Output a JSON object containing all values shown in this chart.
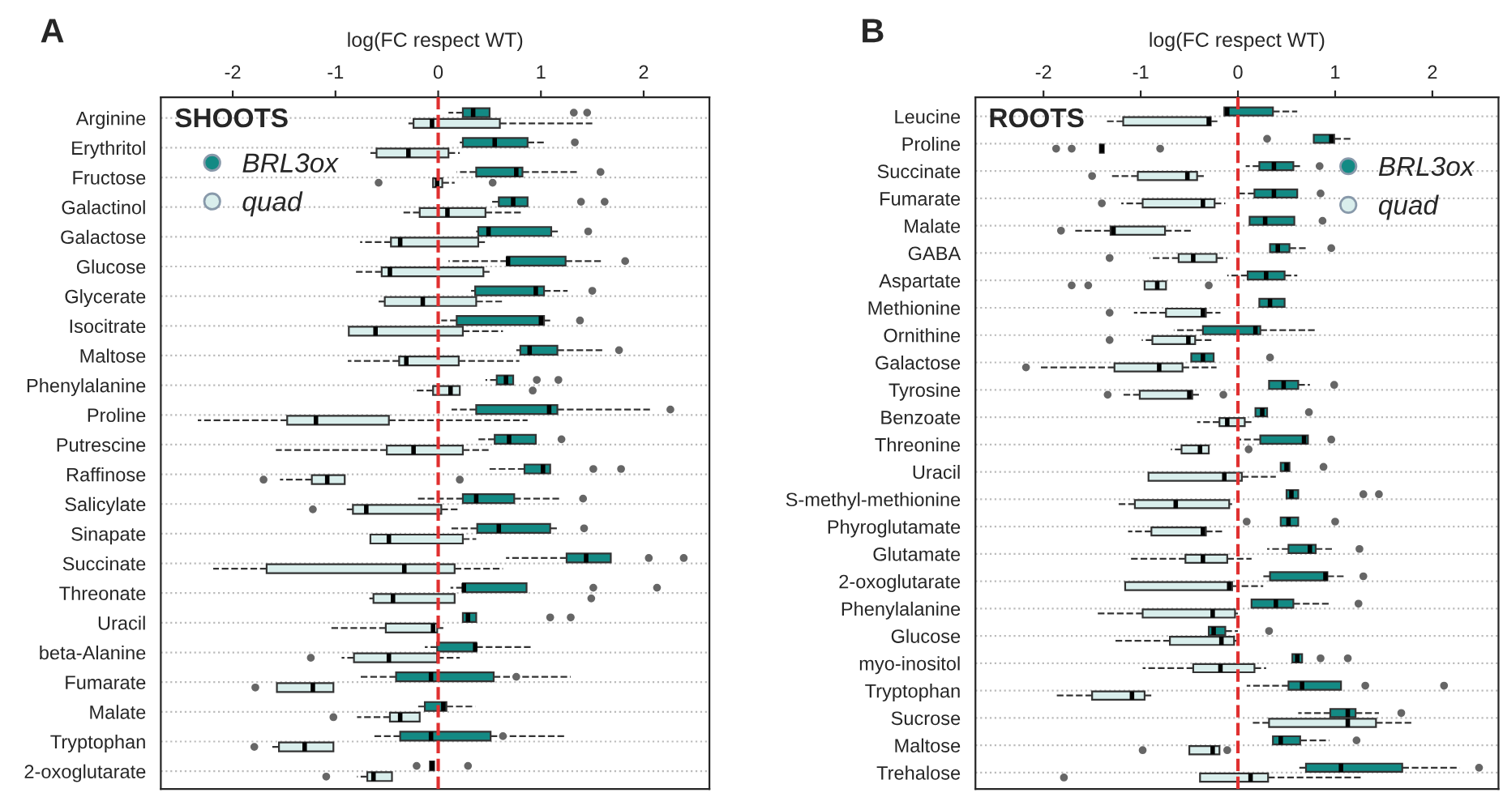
{
  "chart_data": [
    {
      "type": "box",
      "orientation": "horizontal",
      "title": "A",
      "xlabel": "log(FC respect WT)",
      "annotations": [
        "SHOOTS"
      ],
      "legend": "top left",
      "grid": "y",
      "marker": "circle",
      "xlim": [
        -2.7,
        2.64
      ],
      "xticks": [
        -2,
        -1,
        0,
        1,
        2
      ],
      "ref_lines": [
        {
          "axis": "x",
          "value": 0,
          "color": "#e03030",
          "line_style": "dashed"
        }
      ],
      "categories": [
        "Arginine",
        "Erythritol",
        "Fructose",
        "Galactinol",
        "Galactose",
        "Glucose",
        "Glycerate",
        "Isocitrate",
        "Maltose",
        "Phenylalanine",
        "Proline",
        "Putrescine",
        "Raffinose",
        "Salicylate",
        "Sinapate",
        "Succinate",
        "Threonate",
        "Uracil",
        "beta-Alanine",
        "Fumarate",
        "Malate",
        "Tryptophan",
        "2-oxoglutarate"
      ],
      "series": [
        {
          "name": "BRL3ox",
          "color": "#138a84",
          "boxes": [
            {
              "low": 0.1,
              "q1": 0.24,
              "median": 0.34,
              "q3": 0.5,
              "high": 0.5,
              "outliers": [
                1.32,
                1.45
              ]
            },
            {
              "low": 0.21,
              "q1": 0.24,
              "median": 0.55,
              "q3": 0.87,
              "high": 1.03,
              "outliers": [
                1.33
              ]
            },
            {
              "low": 0.18,
              "q1": 0.37,
              "median": 0.76,
              "q3": 0.82,
              "high": 1.37,
              "outliers": [
                1.58
              ]
            },
            {
              "low": 0.5,
              "q1": 0.59,
              "median": 0.73,
              "q3": 0.87,
              "high": 0.87,
              "outliers": [
                1.39,
                1.62
              ]
            },
            {
              "low": 0.37,
              "q1": 0.39,
              "median": 0.49,
              "q3": 1.1,
              "high": 1.18,
              "outliers": [
                1.46
              ]
            },
            {
              "low": 0.1,
              "q1": 0.67,
              "median": 0.68,
              "q3": 1.24,
              "high": 1.59,
              "outliers": [
                1.82
              ]
            },
            {
              "low": 0.32,
              "q1": 0.36,
              "median": 0.95,
              "q3": 1.03,
              "high": 1.26,
              "outliers": [
                1.5
              ]
            },
            {
              "low": 0.03,
              "q1": 0.18,
              "median": 1.0,
              "q3": 1.03,
              "high": 1.09,
              "outliers": [
                1.38
              ]
            },
            {
              "low": 0.76,
              "q1": 0.8,
              "median": 0.89,
              "q3": 1.16,
              "high": 1.62,
              "outliers": [
                1.76
              ]
            },
            {
              "low": 0.46,
              "q1": 0.57,
              "median": 0.66,
              "q3": 0.73,
              "high": 0.73,
              "outliers": [
                0.96,
                1.17
              ]
            },
            {
              "low": 0.13,
              "q1": 0.37,
              "median": 1.08,
              "q3": 1.16,
              "high": 2.08,
              "outliers": [
                2.26
              ]
            },
            {
              "low": 0.37,
              "q1": 0.55,
              "median": 0.69,
              "q3": 0.95,
              "high": 0.95,
              "outliers": [
                1.2
              ]
            },
            {
              "low": 0.5,
              "q1": 0.84,
              "median": 1.02,
              "q3": 1.09,
              "high": 1.09,
              "outliers": [
                1.51,
                1.78
              ]
            },
            {
              "low": -0.21,
              "q1": 0.24,
              "median": 0.37,
              "q3": 0.74,
              "high": 1.2,
              "outliers": [
                1.41
              ]
            },
            {
              "low": 0.12,
              "q1": 0.38,
              "median": 0.59,
              "q3": 1.09,
              "high": 1.16,
              "outliers": [
                1.42
              ]
            },
            {
              "low": 0.66,
              "q1": 1.25,
              "median": 1.44,
              "q3": 1.68,
              "high": 1.68,
              "outliers": [
                2.05,
                2.39
              ]
            },
            {
              "low": 0.12,
              "q1": 0.24,
              "median": 0.25,
              "q3": 0.86,
              "high": 0.86,
              "outliers": [
                1.51,
                2.13
              ]
            },
            {
              "low": 0.24,
              "q1": 0.24,
              "median": 0.29,
              "q3": 0.37,
              "high": 0.37,
              "outliers": [
                1.09,
                1.29
              ]
            },
            {
              "low": -0.13,
              "q1": -0.01,
              "median": 0.36,
              "q3": 0.37,
              "high": 0.92
            },
            {
              "low": -0.76,
              "q1": -0.41,
              "median": -0.07,
              "q3": 0.54,
              "high": 1.29,
              "outliers": [
                0.76
              ]
            },
            {
              "low": -0.21,
              "q1": -0.13,
              "median": 0.05,
              "q3": 0.08,
              "high": 0.36
            },
            {
              "low": -0.63,
              "q1": -0.37,
              "median": -0.07,
              "q3": 0.51,
              "high": 1.25,
              "outliers": [
                0.63
              ]
            },
            {
              "low": -0.08,
              "q1": -0.08,
              "median": -0.06,
              "q3": -0.04,
              "high": -0.04,
              "outliers": [
                -0.21,
                0.29
              ]
            }
          ]
        },
        {
          "name": "quad",
          "color": "#d9eeec",
          "boxes": [
            {
              "low": -0.29,
              "q1": -0.24,
              "median": -0.06,
              "q3": 0.6,
              "high": 1.5
            },
            {
              "low": -0.66,
              "q1": -0.6,
              "median": -0.29,
              "q3": 0.1,
              "high": 0.21
            },
            {
              "low": -0.05,
              "q1": -0.05,
              "median": -0.01,
              "q3": 0.04,
              "high": 0.16,
              "outliers": [
                -0.58,
                0.53
              ]
            },
            {
              "low": -0.34,
              "q1": -0.18,
              "median": 0.09,
              "q3": 0.46,
              "high": 0.83
            },
            {
              "low": -0.76,
              "q1": -0.46,
              "median": -0.37,
              "q3": 0.39,
              "high": 0.47
            },
            {
              "low": -0.8,
              "q1": -0.55,
              "median": -0.47,
              "q3": 0.44,
              "high": 0.5
            },
            {
              "low": -0.58,
              "q1": -0.52,
              "median": -0.15,
              "q3": 0.37,
              "high": 0.63
            },
            {
              "low": -0.87,
              "q1": -0.87,
              "median": -0.61,
              "q3": 0.24,
              "high": 0.63
            },
            {
              "low": -0.88,
              "q1": -0.38,
              "median": -0.31,
              "q3": 0.2,
              "high": 0.79
            },
            {
              "low": -0.24,
              "q1": -0.05,
              "median": 0.12,
              "q3": 0.21,
              "high": 0.21,
              "outliers": [
                0.92
              ]
            },
            {
              "low": -2.34,
              "q1": -1.47,
              "median": -1.19,
              "q3": -0.48,
              "high": 0.87
            },
            {
              "low": -1.58,
              "q1": -0.5,
              "median": -0.24,
              "q3": 0.24,
              "high": 0.5
            },
            {
              "low": -1.54,
              "q1": -1.23,
              "median": -1.08,
              "q3": -0.91,
              "high": -0.91,
              "outliers": [
                -1.7,
                0.21
              ]
            },
            {
              "low": -0.89,
              "q1": -0.83,
              "median": -0.7,
              "q3": 0.03,
              "high": 0.21,
              "outliers": [
                -1.22
              ]
            },
            {
              "low": -0.66,
              "q1": -0.66,
              "median": -0.48,
              "q3": 0.24,
              "high": 0.37
            },
            {
              "low": -2.19,
              "q1": -1.67,
              "median": -0.33,
              "q3": 0.16,
              "high": 0.63
            },
            {
              "low": -0.67,
              "q1": -0.63,
              "median": -0.44,
              "q3": 0.16,
              "high": 0.16,
              "outliers": [
                1.49
              ]
            },
            {
              "low": -1.06,
              "q1": -0.51,
              "median": -0.05,
              "q3": -0.01,
              "high": 0.05
            },
            {
              "low": -0.94,
              "q1": -0.82,
              "median": -0.48,
              "q3": -0.01,
              "high": 0.21,
              "outliers": [
                -1.24
              ]
            },
            {
              "low": -1.57,
              "q1": -1.57,
              "median": -1.22,
              "q3": -1.02,
              "high": -1.02,
              "outliers": [
                -1.78
              ]
            },
            {
              "low": -0.79,
              "q1": -0.47,
              "median": -0.37,
              "q3": -0.18,
              "high": -0.18,
              "outliers": [
                -1.02
              ]
            },
            {
              "low": -1.63,
              "q1": -1.55,
              "median": -1.3,
              "q3": -1.02,
              "high": -1.02,
              "outliers": [
                -1.79
              ]
            },
            {
              "low": -0.79,
              "q1": -0.69,
              "median": -0.63,
              "q3": -0.45,
              "high": -0.45,
              "outliers": [
                -1.09
              ]
            }
          ]
        }
      ]
    },
    {
      "type": "box",
      "orientation": "horizontal",
      "title": "B",
      "xlabel": "log(FC respect WT)",
      "annotations": [
        "ROOTS"
      ],
      "legend": "top right",
      "grid": "y",
      "marker": "circle",
      "xlim": [
        -2.7,
        2.68
      ],
      "xticks": [
        -2,
        -1,
        0,
        1,
        2
      ],
      "ref_lines": [
        {
          "axis": "x",
          "value": 0,
          "color": "#e03030",
          "line_style": "dashed"
        }
      ],
      "categories": [
        "Leucine",
        "Proline",
        "Succinate",
        "Fumarate",
        "Malate",
        "GABA",
        "Aspartate",
        "Methionine",
        "Ornithine",
        "Galactose",
        "Tyrosine",
        "Benzoate",
        "Threonine",
        "Uracil",
        "S-methyl-methionine",
        "Phyroglutamate",
        "Glutamate",
        "2-oxoglutarate",
        "Phenylalanine",
        "Glucose",
        "myo-inositol",
        "Tryptophan",
        "Sucrose",
        "Maltose",
        "Trehalose"
      ],
      "series": [
        {
          "name": "BRL3ox",
          "color": "#138a84",
          "boxes": [
            {
              "low": -0.14,
              "q1": -0.14,
              "median": -0.11,
              "q3": 0.36,
              "high": 0.61
            },
            {
              "low": 0.78,
              "q1": 0.78,
              "median": 0.96,
              "q3": 0.99,
              "high": 1.16,
              "outliers": [
                0.3
              ]
            },
            {
              "low": 0.08,
              "q1": 0.22,
              "median": 0.37,
              "q3": 0.57,
              "high": 0.66,
              "outliers": [
                0.84
              ]
            },
            {
              "low": 0.0,
              "q1": 0.17,
              "median": 0.37,
              "q3": 0.61,
              "high": 0.61,
              "outliers": [
                0.85
              ]
            },
            {
              "low": 0.12,
              "q1": 0.12,
              "median": 0.28,
              "q3": 0.58,
              "high": 0.58,
              "outliers": [
                0.87
              ]
            },
            {
              "low": 0.33,
              "q1": 0.33,
              "median": 0.41,
              "q3": 0.53,
              "high": 0.72,
              "outliers": [
                0.96
              ]
            },
            {
              "low": -0.11,
              "q1": 0.1,
              "median": 0.29,
              "q3": 0.48,
              "high": 0.61
            },
            {
              "low": 0.22,
              "q1": 0.22,
              "median": 0.33,
              "q3": 0.48,
              "high": 0.48
            },
            {
              "low": -0.66,
              "q1": -0.36,
              "median": 0.18,
              "q3": 0.23,
              "high": 0.8
            },
            {
              "low": -0.48,
              "q1": -0.48,
              "median": -0.36,
              "q3": -0.25,
              "high": -0.25,
              "outliers": [
                0.33
              ]
            },
            {
              "low": 0.32,
              "q1": 0.32,
              "median": 0.47,
              "q3": 0.62,
              "high": 0.74,
              "outliers": [
                0.99
              ]
            },
            {
              "low": 0.18,
              "q1": 0.18,
              "median": 0.25,
              "q3": 0.3,
              "high": 0.3,
              "outliers": [
                0.73
              ]
            },
            {
              "low": 0.0,
              "q1": 0.23,
              "median": 0.68,
              "q3": 0.72,
              "high": 0.72,
              "outliers": [
                0.96
              ]
            },
            {
              "low": 0.44,
              "q1": 0.44,
              "median": 0.5,
              "q3": 0.53,
              "high": 0.53,
              "outliers": [
                0.88
              ]
            },
            {
              "low": 0.5,
              "q1": 0.5,
              "median": 0.55,
              "q3": 0.62,
              "high": 0.62,
              "outliers": [
                1.29,
                1.45
              ]
            },
            {
              "low": 0.44,
              "q1": 0.44,
              "median": 0.52,
              "q3": 0.62,
              "high": 0.62,
              "outliers": [
                0.09,
                1.0
              ]
            },
            {
              "low": 0.3,
              "q1": 0.52,
              "median": 0.74,
              "q3": 0.8,
              "high": 0.99,
              "outliers": [
                1.25
              ]
            },
            {
              "low": 0.24,
              "q1": 0.33,
              "median": 0.9,
              "q3": 0.92,
              "high": 1.1,
              "outliers": [
                1.29
              ]
            },
            {
              "low": 0.14,
              "q1": 0.14,
              "median": 0.39,
              "q3": 0.57,
              "high": 0.95,
              "outliers": [
                1.24
              ]
            },
            {
              "low": -0.3,
              "q1": -0.3,
              "median": -0.25,
              "q3": -0.13,
              "high": 0.0,
              "outliers": [
                0.32
              ]
            },
            {
              "low": 0.56,
              "q1": 0.56,
              "median": 0.61,
              "q3": 0.66,
              "high": 0.66,
              "outliers": [
                0.85,
                1.13
              ]
            },
            {
              "low": 0.09,
              "q1": 0.52,
              "median": 0.66,
              "q3": 1.06,
              "high": 1.06,
              "outliers": [
                1.31,
                2.12
              ]
            },
            {
              "low": 0.62,
              "q1": 0.95,
              "median": 1.13,
              "q3": 1.21,
              "high": 1.45,
              "outliers": [
                1.68
              ]
            },
            {
              "low": 0.36,
              "q1": 0.36,
              "median": 0.44,
              "q3": 0.64,
              "high": 0.94,
              "outliers": [
                1.22
              ]
            },
            {
              "low": 0.61,
              "q1": 0.7,
              "median": 1.06,
              "q3": 1.69,
              "high": 2.28,
              "outliers": [
                2.48
              ]
            }
          ]
        },
        {
          "name": "quad",
          "color": "#d9eeec",
          "boxes": [
            {
              "low": -1.35,
              "q1": -1.18,
              "median": -0.3,
              "q3": -0.28,
              "high": -0.19
            },
            {
              "low": -1.42,
              "q1": -1.42,
              "median": -1.4,
              "q3": -1.38,
              "high": -1.38,
              "outliers": [
                -1.87,
                -1.71,
                -0.8
              ]
            },
            {
              "low": -1.32,
              "q1": -1.03,
              "median": -0.52,
              "q3": -0.42,
              "high": -0.33,
              "outliers": [
                -1.5
              ]
            },
            {
              "low": -1.2,
              "q1": -0.98,
              "median": -0.36,
              "q3": -0.24,
              "high": -0.13,
              "outliers": [
                -1.4
              ]
            },
            {
              "low": -1.68,
              "q1": -1.31,
              "median": -1.28,
              "q3": -0.75,
              "high": -0.47,
              "outliers": [
                -1.82
              ]
            },
            {
              "low": -0.91,
              "q1": -0.61,
              "median": -0.46,
              "q3": -0.22,
              "high": -0.11,
              "outliers": [
                -1.32
              ]
            },
            {
              "low": -0.96,
              "q1": -0.96,
              "median": -0.83,
              "q3": -0.74,
              "high": -0.74,
              "outliers": [
                -1.71,
                -1.54,
                -0.3
              ]
            },
            {
              "low": -1.07,
              "q1": -0.74,
              "median": -0.36,
              "q3": -0.33,
              "high": -0.18,
              "outliers": [
                -1.32
              ]
            },
            {
              "low": -0.99,
              "q1": -0.88,
              "median": -0.51,
              "q3": -0.44,
              "high": -0.25,
              "outliers": [
                -1.32
              ]
            },
            {
              "low": -2.04,
              "q1": -1.27,
              "median": -0.81,
              "q3": -0.57,
              "high": -0.22,
              "outliers": [
                -2.18
              ]
            },
            {
              "low": -1.18,
              "q1": -1.01,
              "median": -0.5,
              "q3": -0.47,
              "high": -0.39,
              "outliers": [
                -1.34,
                -0.15
              ]
            },
            {
              "low": -0.42,
              "q1": -0.19,
              "median": -0.11,
              "q3": 0.07,
              "high": 0.14
            },
            {
              "low": -0.69,
              "q1": -0.58,
              "median": -0.39,
              "q3": -0.3,
              "high": -0.3,
              "outliers": [
                0.11
              ]
            },
            {
              "low": -0.92,
              "q1": -0.92,
              "median": -0.14,
              "q3": 0.04,
              "high": 0.39
            },
            {
              "low": -1.24,
              "q1": -1.06,
              "median": -0.64,
              "q3": -0.09,
              "high": -0.06
            },
            {
              "low": -1.13,
              "q1": -0.89,
              "median": -0.36,
              "q3": -0.33,
              "high": -0.15
            },
            {
              "low": -1.13,
              "q1": -0.54,
              "median": -0.36,
              "q3": -0.11,
              "high": 0.14
            },
            {
              "low": -1.16,
              "q1": -1.16,
              "median": -0.09,
              "q3": -0.06,
              "high": 0.26
            },
            {
              "low": -1.47,
              "q1": -0.98,
              "median": -0.26,
              "q3": -0.03,
              "high": 0.0
            },
            {
              "low": -1.27,
              "q1": -0.7,
              "median": -0.17,
              "q3": -0.04,
              "high": 0.0
            },
            {
              "low": -0.98,
              "q1": -0.46,
              "median": -0.18,
              "q3": 0.17,
              "high": 0.29
            },
            {
              "low": -1.87,
              "q1": -1.5,
              "median": -1.09,
              "q3": -0.96,
              "high": -0.87
            },
            {
              "low": 0.13,
              "q1": 0.32,
              "median": 1.13,
              "q3": 1.42,
              "high": 1.79
            },
            {
              "low": -0.5,
              "q1": -0.5,
              "median": -0.26,
              "q3": -0.19,
              "high": -0.19,
              "outliers": [
                -0.98,
                -0.11
              ]
            },
            {
              "low": -0.39,
              "q1": -0.39,
              "median": 0.13,
              "q3": 0.31,
              "high": 1.29,
              "outliers": [
                -1.79
              ]
            }
          ]
        }
      ]
    }
  ]
}
